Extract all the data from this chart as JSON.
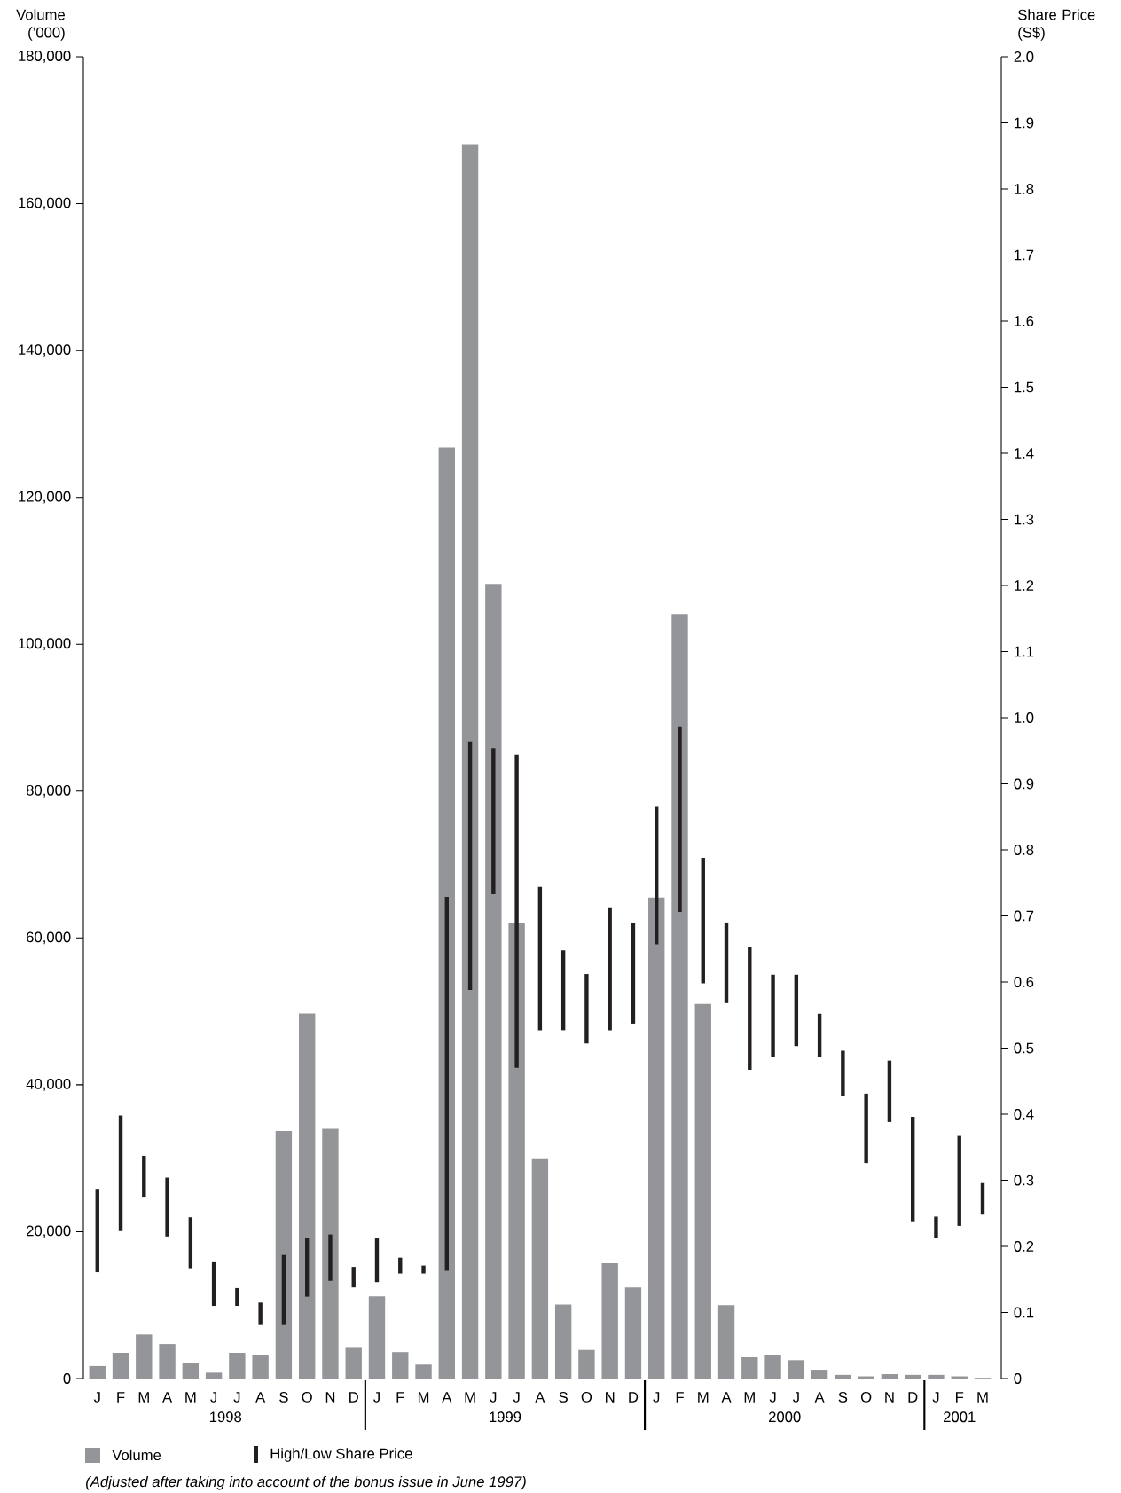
{
  "chart_data": {
    "type": "bar",
    "categories": [
      "J",
      "F",
      "M",
      "A",
      "M",
      "J",
      "J",
      "A",
      "S",
      "O",
      "N",
      "D",
      "J",
      "F",
      "M",
      "A",
      "M",
      "J",
      "J",
      "A",
      "S",
      "O",
      "N",
      "D",
      "J",
      "F",
      "M",
      "A",
      "M",
      "J",
      "J",
      "A",
      "S",
      "O",
      "N",
      "D",
      "J",
      "F",
      "M"
    ],
    "ylabel": "Volume (’000)",
    "y2label": "Share Price (S$)",
    "ylim": [
      0,
      180000
    ],
    "yticks": [
      0,
      {
        "value": 20000,
        "label": "20,000"
      },
      {
        "value": 40000,
        "label": "40,000"
      },
      {
        "value": 60000,
        "label": "60,000"
      },
      {
        "value": 80000,
        "label": "80,000"
      },
      {
        "value": 100000,
        "label": "100,000"
      },
      {
        "value": 120000,
        "label": "120,000"
      },
      {
        "value": 140000,
        "label": "140,000"
      },
      {
        "value": 160000,
        "label": "160,000"
      },
      {
        "value": 180000,
        "label": "180,000"
      }
    ],
    "y2lim": [
      0,
      2.0
    ],
    "y2ticks": [
      0,
      0.1,
      0.2,
      0.3,
      0.4,
      0.5,
      0.6,
      0.7,
      0.8,
      0.9,
      {
        "value": 1.0,
        "label": "1.0"
      },
      1.1,
      1.2,
      1.3,
      1.4,
      1.5,
      1.6,
      1.7,
      1.8,
      1.9,
      {
        "value": 2.0,
        "label": "2.0"
      }
    ],
    "series": [
      {
        "name": "Volume",
        "color": "#939598",
        "values": [
          1700,
          3500,
          6000,
          4700,
          2100,
          800,
          3500,
          3200,
          33700,
          49700,
          34000,
          4300,
          11200,
          3600,
          1900,
          126800,
          168100,
          108200,
          62100,
          30000,
          10100,
          3900,
          15700,
          12400,
          65500,
          104100,
          51000,
          10000,
          2900,
          3200,
          2500,
          1200,
          500,
          300,
          600,
          500,
          500,
          300,
          100
        ]
      },
      {
        "name": "High/Low Share Price",
        "axis": "y2",
        "color": "#231f20",
        "base": [
          0.161,
          0.223,
          0.275,
          0.215,
          0.167,
          0.11,
          0.11,
          0.081,
          0.081,
          0.124,
          0.148,
          0.138,
          0.146,
          0.159,
          0.159,
          0.163,
          0.588,
          0.733,
          0.47,
          0.527,
          0.527,
          0.507,
          0.527,
          0.537,
          0.657,
          0.706,
          0.598,
          0.568,
          0.467,
          0.487,
          0.503,
          0.487,
          0.428,
          0.326,
          0.388,
          0.238,
          0.212,
          0.231,
          0.248
        ],
        "values": [
          0.126,
          0.175,
          0.062,
          0.089,
          0.077,
          0.066,
          0.027,
          0.034,
          0.106,
          0.088,
          0.07,
          0.031,
          0.066,
          0.024,
          0.012,
          0.566,
          0.376,
          0.221,
          0.474,
          0.217,
          0.121,
          0.105,
          0.186,
          0.152,
          0.208,
          0.281,
          0.19,
          0.122,
          0.186,
          0.124,
          0.108,
          0.065,
          0.068,
          0.105,
          0.093,
          0.158,
          0.033,
          0.136,
          0.049
        ]
      }
    ],
    "annotations": [
      "1998",
      "1999",
      "2000",
      "2001",
      "*(Adjusted after taking into account of the bonus issue in June 1997)*"
    ],
    "legend": "bottom"
  }
}
